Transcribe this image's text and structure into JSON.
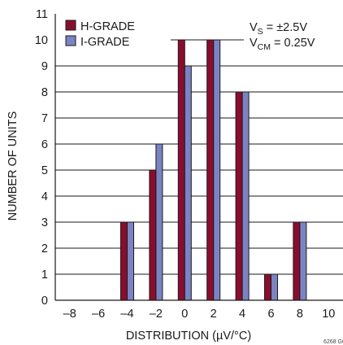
{
  "chart_data": {
    "type": "bar",
    "xlabel": "DISTRIBUTION (µV/°C)",
    "ylabel": "NUMBER OF UNITS",
    "x_ticks": [
      "–8",
      "–6",
      "–4",
      "–2",
      "0",
      "2",
      "4",
      "6",
      "8",
      "10"
    ],
    "y_ticks": [
      "0",
      "1",
      "2",
      "3",
      "4",
      "5",
      "6",
      "7",
      "8",
      "9",
      "10",
      "11"
    ],
    "xlim": [
      -9,
      11
    ],
    "ylim": [
      0,
      11
    ],
    "grid": "horizontal",
    "legend_placement": "top-left",
    "x": [
      -8,
      -6,
      -4,
      -2,
      0,
      2,
      4,
      6,
      8,
      10
    ],
    "series": [
      {
        "name": "H-GRADE",
        "color": "#8b0d2e",
        "values": [
          0,
          0,
          3,
          5,
          10,
          10,
          8,
          1,
          3,
          0
        ]
      },
      {
        "name": "I-GRADE",
        "color": "#7b84c2",
        "values": [
          0,
          0,
          3,
          6,
          9,
          10,
          8,
          1,
          3,
          0
        ]
      }
    ],
    "annotation": {
      "vs": "V",
      "vs_sub": "S",
      "vs_val": " = ±2.5V",
      "vcm": "V",
      "vcm_sub": "CM",
      "vcm_val": " = 0.25V"
    },
    "figure_id": "6268 G06"
  }
}
